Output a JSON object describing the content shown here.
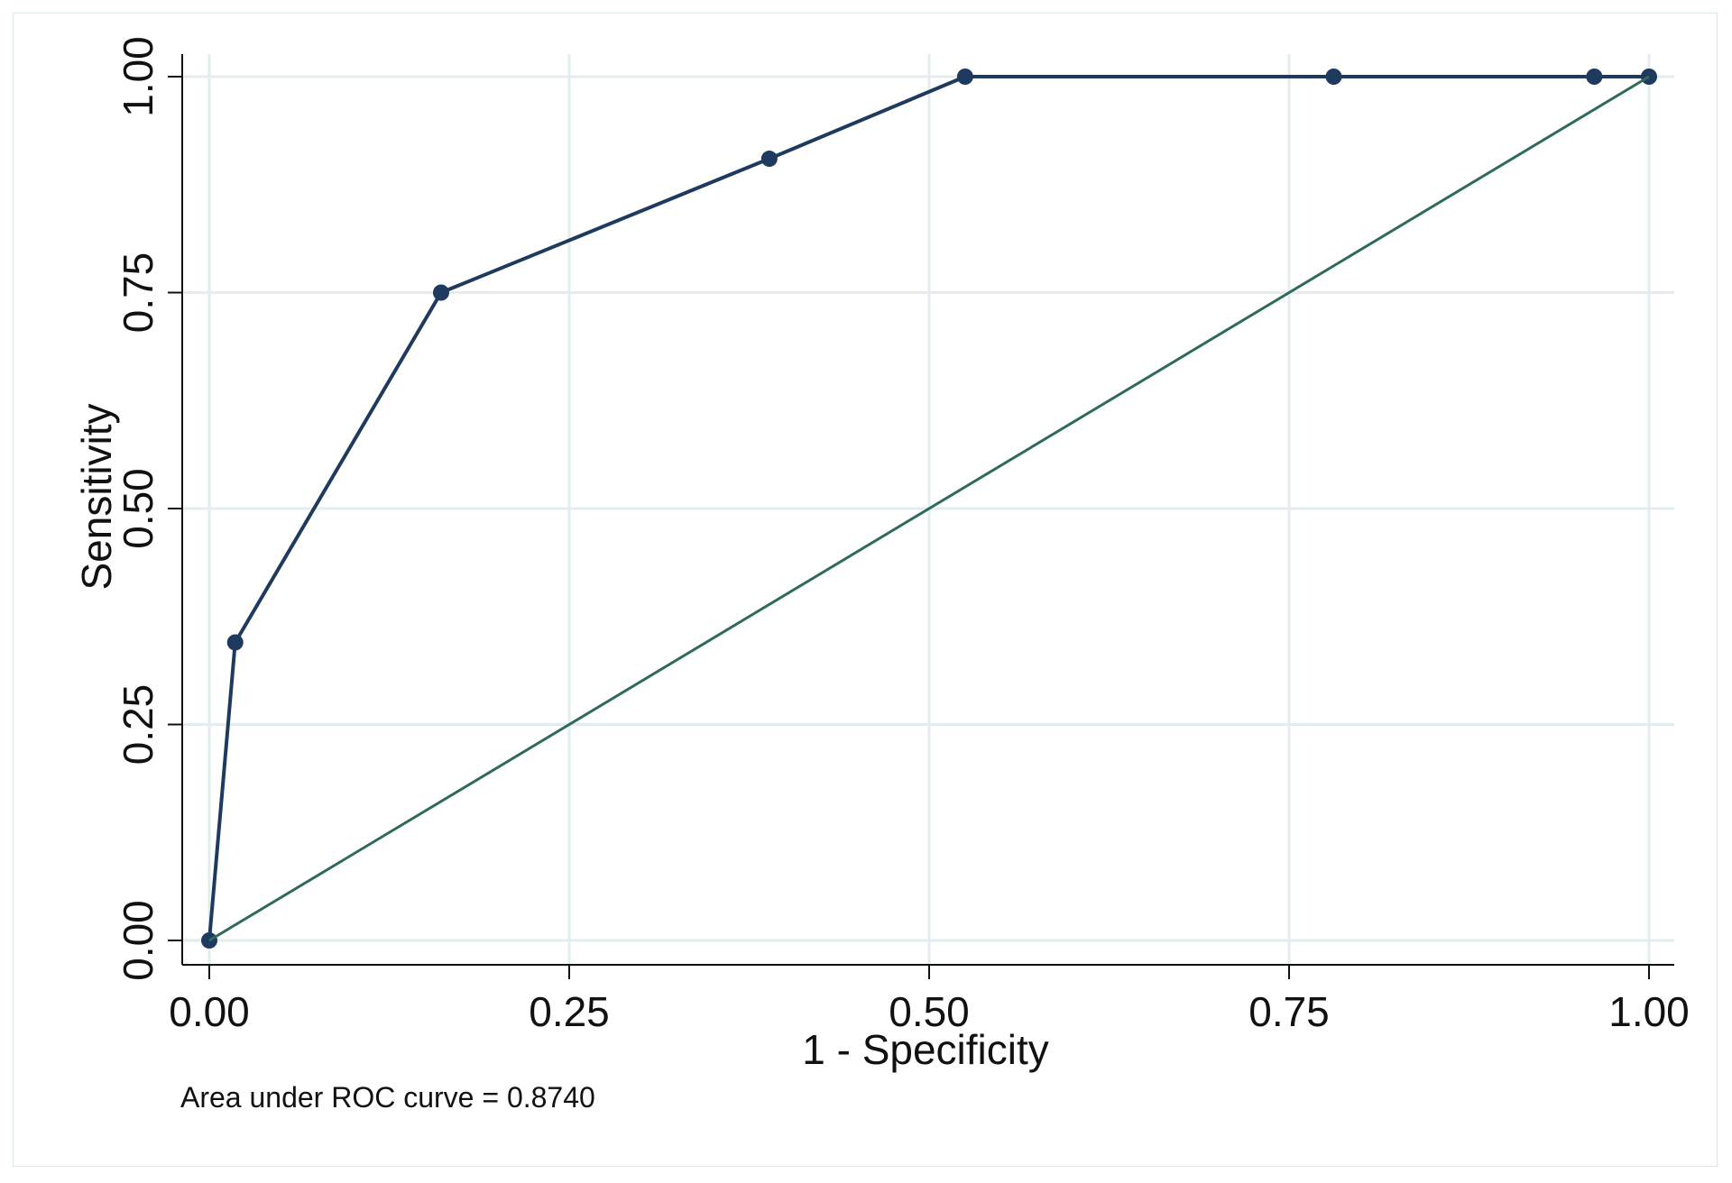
{
  "chart_data": {
    "type": "line",
    "title": "",
    "xlabel": "1 - Specificity",
    "ylabel": "Sensitivity",
    "xlim": [
      0,
      1
    ],
    "ylim": [
      0,
      1
    ],
    "x_ticks": [
      "0.00",
      "0.25",
      "0.50",
      "0.75",
      "1.00"
    ],
    "y_ticks": [
      "0.00",
      "0.25",
      "0.50",
      "0.75",
      "1.00"
    ],
    "grid": true,
    "legend": "none",
    "note": "Area under ROC curve = 0.8740",
    "series": [
      {
        "color": "#1e3a5f",
        "markers": true,
        "x": [
          0.0,
          0.018,
          0.161,
          0.389,
          0.525,
          0.781,
          0.962,
          1.0
        ],
        "y": [
          0.0,
          0.345,
          0.75,
          0.905,
          1.0,
          1.0,
          1.0,
          1.0
        ]
      },
      {
        "color": "#2e6b5a",
        "markers": false,
        "x": [
          0.0,
          1.0
        ],
        "y": [
          0.0,
          1.0
        ]
      }
    ],
    "colors": {
      "grid": "#e3ecef",
      "axis": "#111111",
      "roc_line": "#1e3a5f",
      "reference_line": "#2e6b5a"
    }
  }
}
